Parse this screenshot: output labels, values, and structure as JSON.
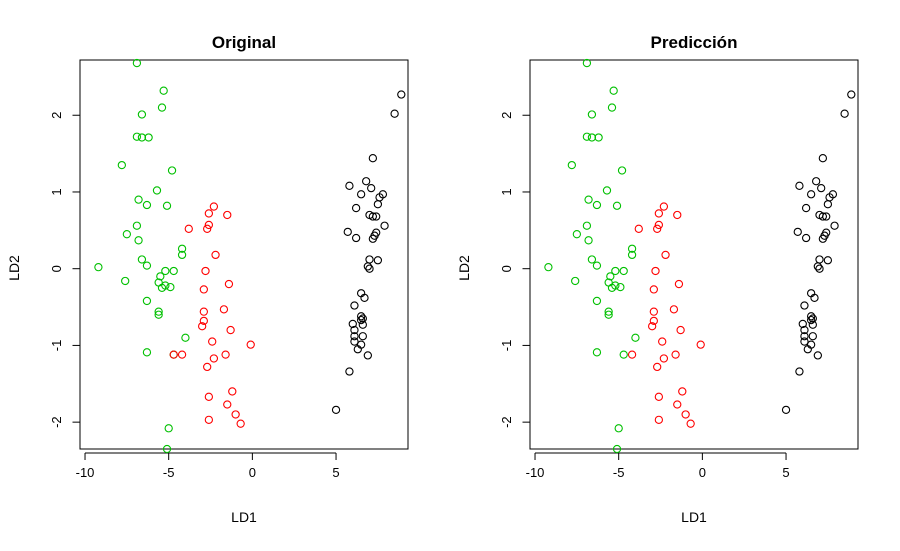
{
  "chart_data": [
    {
      "type": "scatter",
      "title": "Original",
      "xlabel": "LD1",
      "ylabel": "LD2",
      "xlim": [
        -10.3,
        9.3
      ],
      "ylim": [
        -2.35,
        2.72
      ],
      "xticks": [
        "-10",
        "-5",
        "0",
        "5"
      ],
      "xtick_values": [
        -10,
        -5,
        0,
        5
      ],
      "yticks": [
        "-2",
        "-1",
        "0",
        "1",
        "2"
      ],
      "ytick_values": [
        -2,
        -1,
        0,
        1,
        2
      ],
      "series": [
        {
          "color": "#00c000",
          "points": [
            [
              -6.9,
              2.68
            ],
            [
              -5.3,
              2.32
            ],
            [
              -5.4,
              2.1
            ],
            [
              -6.6,
              2.01
            ],
            [
              -6.9,
              1.72
            ],
            [
              -6.6,
              1.71
            ],
            [
              -6.2,
              1.71
            ],
            [
              -7.8,
              1.35
            ],
            [
              -4.8,
              1.28
            ],
            [
              -5.7,
              1.02
            ],
            [
              -6.8,
              0.9
            ],
            [
              -6.3,
              0.83
            ],
            [
              -5.1,
              0.82
            ],
            [
              -6.9,
              0.56
            ],
            [
              -7.5,
              0.45
            ],
            [
              -6.8,
              0.37
            ],
            [
              -4.2,
              0.26
            ],
            [
              -4.2,
              0.18
            ],
            [
              -6.6,
              0.12
            ],
            [
              -6.3,
              0.04
            ],
            [
              -9.2,
              0.02
            ],
            [
              -5.2,
              -0.03
            ],
            [
              -4.7,
              -0.03
            ],
            [
              -5.5,
              -0.1
            ],
            [
              -7.6,
              -0.16
            ],
            [
              -5.6,
              -0.18
            ],
            [
              -5.2,
              -0.22
            ],
            [
              -5.4,
              -0.25
            ],
            [
              -4.9,
              -0.24
            ],
            [
              -6.3,
              -0.42
            ],
            [
              -5.6,
              -0.56
            ],
            [
              -5.6,
              -0.6
            ],
            [
              -4.0,
              -0.9
            ],
            [
              -6.3,
              -1.09
            ],
            [
              -4.7,
              -1.12
            ],
            [
              -5.0,
              -2.08
            ],
            [
              -5.1,
              -2.35
            ]
          ]
        },
        {
          "color": "#ff0000",
          "points": [
            [
              -2.3,
              0.81
            ],
            [
              -2.6,
              0.72
            ],
            [
              -1.5,
              0.7
            ],
            [
              -2.6,
              0.57
            ],
            [
              -2.7,
              0.52
            ],
            [
              -3.8,
              0.52
            ],
            [
              -2.2,
              0.18
            ],
            [
              -2.8,
              -0.03
            ],
            [
              -1.4,
              -0.2
            ],
            [
              -2.9,
              -0.27
            ],
            [
              -1.7,
              -0.53
            ],
            [
              -2.9,
              -0.56
            ],
            [
              -2.9,
              -0.68
            ],
            [
              -3.0,
              -0.75
            ],
            [
              -1.3,
              -0.8
            ],
            [
              -2.4,
              -0.95
            ],
            [
              -0.1,
              -0.99
            ],
            [
              -1.6,
              -1.12
            ],
            [
              -4.2,
              -1.12
            ],
            [
              -4.7,
              -1.12
            ],
            [
              -2.3,
              -1.17
            ],
            [
              -2.7,
              -1.28
            ],
            [
              -1.2,
              -1.6
            ],
            [
              -2.6,
              -1.67
            ],
            [
              -1.5,
              -1.77
            ],
            [
              -1.0,
              -1.9
            ],
            [
              -2.6,
              -1.97
            ],
            [
              -0.7,
              -2.02
            ]
          ]
        },
        {
          "color": "#000000",
          "points": [
            [
              8.9,
              2.27
            ],
            [
              8.5,
              2.02
            ],
            [
              7.2,
              1.44
            ],
            [
              6.8,
              1.14
            ],
            [
              5.8,
              1.08
            ],
            [
              7.1,
              1.05
            ],
            [
              6.5,
              0.97
            ],
            [
              7.8,
              0.97
            ],
            [
              7.6,
              0.93
            ],
            [
              7.5,
              0.84
            ],
            [
              6.2,
              0.79
            ],
            [
              7.0,
              0.7
            ],
            [
              7.2,
              0.68
            ],
            [
              7.4,
              0.68
            ],
            [
              7.9,
              0.56
            ],
            [
              5.7,
              0.48
            ],
            [
              7.4,
              0.47
            ],
            [
              7.3,
              0.43
            ],
            [
              7.2,
              0.39
            ],
            [
              6.2,
              0.4
            ],
            [
              7.0,
              0.12
            ],
            [
              7.5,
              0.11
            ],
            [
              6.9,
              0.03
            ],
            [
              7.0,
              0.0
            ],
            [
              6.5,
              -0.32
            ],
            [
              6.7,
              -0.38
            ],
            [
              6.1,
              -0.48
            ],
            [
              6.5,
              -0.62
            ],
            [
              6.6,
              -0.65
            ],
            [
              6.5,
              -0.67
            ],
            [
              6.0,
              -0.72
            ],
            [
              6.6,
              -0.73
            ],
            [
              6.1,
              -0.8
            ],
            [
              6.1,
              -0.88
            ],
            [
              6.6,
              -0.88
            ],
            [
              6.1,
              -0.95
            ],
            [
              6.5,
              -0.99
            ],
            [
              6.3,
              -1.05
            ],
            [
              6.9,
              -1.13
            ],
            [
              5.8,
              -1.34
            ],
            [
              5.0,
              -1.84
            ]
          ]
        }
      ]
    },
    {
      "type": "scatter",
      "title": "Predicción",
      "xlabel": "LD1",
      "ylabel": "LD2",
      "xlim": [
        -10.3,
        9.3
      ],
      "ylim": [
        -2.35,
        2.72
      ],
      "xticks": [
        "-10",
        "-5",
        "0",
        "5"
      ],
      "xtick_values": [
        -10,
        -5,
        0,
        5
      ],
      "yticks": [
        "-2",
        "-1",
        "0",
        "1",
        "2"
      ],
      "ytick_values": [
        -2,
        -1,
        0,
        1,
        2
      ],
      "series": [
        {
          "color": "#00c000",
          "points": [
            [
              -6.9,
              2.68
            ],
            [
              -5.3,
              2.32
            ],
            [
              -5.4,
              2.1
            ],
            [
              -6.6,
              2.01
            ],
            [
              -6.9,
              1.72
            ],
            [
              -6.6,
              1.71
            ],
            [
              -6.2,
              1.71
            ],
            [
              -7.8,
              1.35
            ],
            [
              -4.8,
              1.28
            ],
            [
              -5.7,
              1.02
            ],
            [
              -6.8,
              0.9
            ],
            [
              -6.3,
              0.83
            ],
            [
              -5.1,
              0.82
            ],
            [
              -6.9,
              0.56
            ],
            [
              -7.5,
              0.45
            ],
            [
              -6.8,
              0.37
            ],
            [
              -4.2,
              0.26
            ],
            [
              -4.2,
              0.18
            ],
            [
              -6.6,
              0.12
            ],
            [
              -6.3,
              0.04
            ],
            [
              -9.2,
              0.02
            ],
            [
              -5.2,
              -0.03
            ],
            [
              -4.7,
              -0.03
            ],
            [
              -5.5,
              -0.1
            ],
            [
              -7.6,
              -0.16
            ],
            [
              -5.6,
              -0.18
            ],
            [
              -5.2,
              -0.22
            ],
            [
              -5.4,
              -0.25
            ],
            [
              -4.9,
              -0.24
            ],
            [
              -6.3,
              -0.42
            ],
            [
              -5.6,
              -0.56
            ],
            [
              -5.6,
              -0.6
            ],
            [
              -4.0,
              -0.9
            ],
            [
              -6.3,
              -1.09
            ],
            [
              -4.7,
              -1.12
            ],
            [
              -5.0,
              -2.08
            ],
            [
              -5.1,
              -2.35
            ]
          ]
        },
        {
          "color": "#ff0000",
          "points": [
            [
              -2.3,
              0.81
            ],
            [
              -2.6,
              0.72
            ],
            [
              -1.5,
              0.7
            ],
            [
              -2.6,
              0.57
            ],
            [
              -2.7,
              0.52
            ],
            [
              -3.8,
              0.52
            ],
            [
              -2.2,
              0.18
            ],
            [
              -2.8,
              -0.03
            ],
            [
              -1.4,
              -0.2
            ],
            [
              -2.9,
              -0.27
            ],
            [
              -1.7,
              -0.53
            ],
            [
              -2.9,
              -0.56
            ],
            [
              -2.9,
              -0.68
            ],
            [
              -3.0,
              -0.75
            ],
            [
              -1.3,
              -0.8
            ],
            [
              -2.4,
              -0.95
            ],
            [
              -0.1,
              -0.99
            ],
            [
              -1.6,
              -1.12
            ],
            [
              -4.2,
              -1.12
            ],
            [
              -2.3,
              -1.17
            ],
            [
              -2.7,
              -1.28
            ],
            [
              -1.2,
              -1.6
            ],
            [
              -2.6,
              -1.67
            ],
            [
              -1.5,
              -1.77
            ],
            [
              -1.0,
              -1.9
            ],
            [
              -2.6,
              -1.97
            ],
            [
              -0.7,
              -2.02
            ]
          ]
        },
        {
          "color": "#000000",
          "points": [
            [
              8.9,
              2.27
            ],
            [
              8.5,
              2.02
            ],
            [
              7.2,
              1.44
            ],
            [
              6.8,
              1.14
            ],
            [
              5.8,
              1.08
            ],
            [
              7.1,
              1.05
            ],
            [
              6.5,
              0.97
            ],
            [
              7.8,
              0.97
            ],
            [
              7.6,
              0.93
            ],
            [
              7.5,
              0.84
            ],
            [
              6.2,
              0.79
            ],
            [
              7.0,
              0.7
            ],
            [
              7.2,
              0.68
            ],
            [
              7.4,
              0.68
            ],
            [
              7.9,
              0.56
            ],
            [
              5.7,
              0.48
            ],
            [
              7.4,
              0.47
            ],
            [
              7.3,
              0.43
            ],
            [
              7.2,
              0.39
            ],
            [
              6.2,
              0.4
            ],
            [
              7.0,
              0.12
            ],
            [
              7.5,
              0.11
            ],
            [
              6.9,
              0.03
            ],
            [
              7.0,
              0.0
            ],
            [
              6.5,
              -0.32
            ],
            [
              6.7,
              -0.38
            ],
            [
              6.1,
              -0.48
            ],
            [
              6.5,
              -0.62
            ],
            [
              6.6,
              -0.65
            ],
            [
              6.5,
              -0.67
            ],
            [
              6.0,
              -0.72
            ],
            [
              6.6,
              -0.73
            ],
            [
              6.1,
              -0.8
            ],
            [
              6.1,
              -0.88
            ],
            [
              6.6,
              -0.88
            ],
            [
              6.1,
              -0.95
            ],
            [
              6.5,
              -0.99
            ],
            [
              6.3,
              -1.05
            ],
            [
              6.9,
              -1.13
            ],
            [
              5.8,
              -1.34
            ],
            [
              5.0,
              -1.84
            ]
          ]
        }
      ]
    }
  ]
}
